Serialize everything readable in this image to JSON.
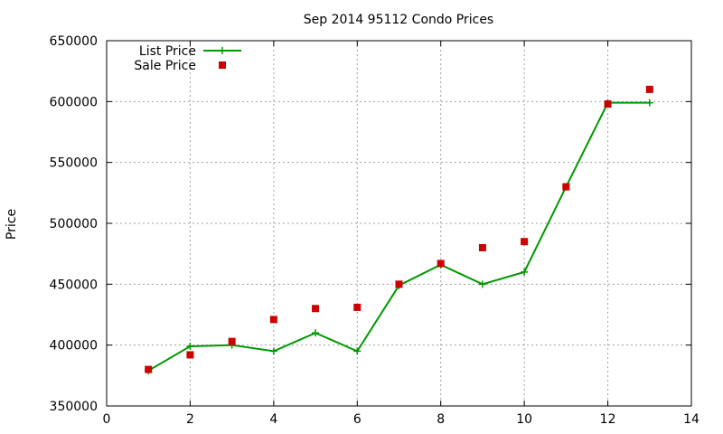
{
  "chart_data": {
    "type": "line",
    "title": "Sep 2014 95112 Condo Prices",
    "xlabel": "",
    "ylabel": "Price",
    "xlim": [
      0,
      14
    ],
    "ylim": [
      350000,
      650000
    ],
    "xticks": [
      0,
      2,
      4,
      6,
      8,
      10,
      12,
      14
    ],
    "yticks": [
      350000,
      400000,
      450000,
      500000,
      550000,
      600000,
      650000
    ],
    "grid": true,
    "legend_position": "top-left",
    "series": [
      {
        "name": "List Price",
        "style": "line-with-plus-markers",
        "color": "#009900",
        "x": [
          1,
          2,
          3,
          4,
          5,
          6,
          7,
          8,
          9,
          10,
          11,
          12,
          13
        ],
        "y": [
          379000,
          399000,
          400000,
          395000,
          410000,
          395000,
          449000,
          466000,
          450000,
          460000,
          530000,
          599000,
          599000
        ]
      },
      {
        "name": "Sale Price",
        "style": "square-markers",
        "color": "#cc0000",
        "x": [
          1,
          2,
          3,
          4,
          5,
          6,
          7,
          8,
          9,
          10,
          11,
          12,
          13
        ],
        "y": [
          380000,
          392000,
          403000,
          421000,
          430000,
          431000,
          450000,
          467000,
          480000,
          485000,
          530000,
          598000,
          610000
        ]
      }
    ]
  }
}
